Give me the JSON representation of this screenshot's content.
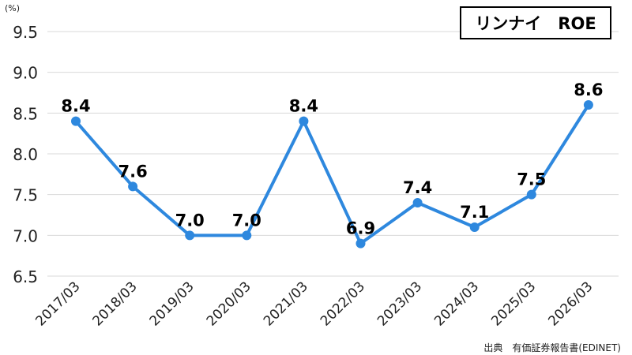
{
  "title": "リンナイ　ROE",
  "unit_label": "(%)",
  "source": "出典　有価証券報告書(EDINET)",
  "colors": {
    "line": "#2e88de",
    "grid": "#d9d9d9",
    "text": "#222222"
  },
  "chart_data": {
    "type": "line",
    "title": "リンナイ　ROE",
    "ylabel": "(%)",
    "xlabel": "",
    "ylim": [
      6.5,
      9.5
    ],
    "yticks": [
      "6.5",
      "7.0",
      "7.5",
      "8.0",
      "8.5",
      "9.0",
      "9.5"
    ],
    "grid": true,
    "categories": [
      "2017/03",
      "2018/03",
      "2019/03",
      "2020/03",
      "2021/03",
      "2022/03",
      "2023/03",
      "2024/03",
      "2025/03",
      "2026/03"
    ],
    "series": [
      {
        "values": [
          8.4,
          7.6,
          7.0,
          7.0,
          8.4,
          6.9,
          7.4,
          7.1,
          7.5,
          8.6
        ],
        "labels": [
          "8.4",
          "7.6",
          "7.0",
          "7.0",
          "8.4",
          "6.9",
          "7.4",
          "7.1",
          "7.5",
          "8.6"
        ]
      }
    ]
  }
}
